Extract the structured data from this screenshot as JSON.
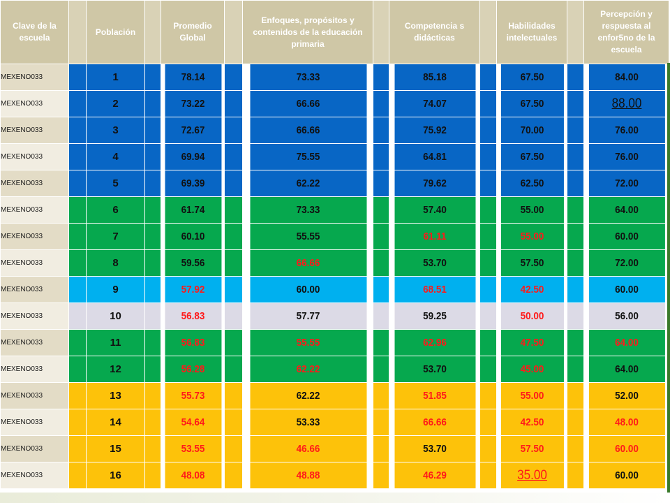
{
  "headers": {
    "clave": "Clave de la escuela",
    "poblacion": "Población",
    "promedio": "Promedio Global",
    "enfoques": "Enfoques, propósitos y contenidos de la educación primaria",
    "competencias": "Competencia s didácticas",
    "habilidades": "Habilidades intelectuales",
    "percepcion": "Percepción y respuesta al enfor5no de la escuela"
  },
  "colors": {
    "blue": "#0866c5",
    "green": "#06a84e",
    "cyan": "#00b0ef",
    "lilac": "#dcdae6",
    "yellow": "#fdc20a",
    "red_text": "#ff1a1a",
    "header": "#cfc7a6"
  },
  "rows": [
    {
      "clave": "MEXENO033",
      "poblacion": "1",
      "promedio": "78.14",
      "enfoques": "73.33",
      "competencias": "85.18",
      "habilidades": "67.50",
      "percepcion": "84.00",
      "color": "blue"
    },
    {
      "clave": "MEXENO033",
      "poblacion": "2",
      "promedio": "73.22",
      "enfoques": "66.66",
      "competencias": "74.07",
      "habilidades": "67.50",
      "percepcion": "88.00",
      "color": "blue"
    },
    {
      "clave": "MEXENO033",
      "poblacion": "3",
      "promedio": "72.67",
      "enfoques": "66.66",
      "competencias": "75.92",
      "habilidades": "70.00",
      "percepcion": "76.00",
      "color": "blue"
    },
    {
      "clave": "MEXENO033",
      "poblacion": "4",
      "promedio": "69.94",
      "enfoques": "75.55",
      "competencias": "64.81",
      "habilidades": "67.50",
      "percepcion": "76.00",
      "color": "blue"
    },
    {
      "clave": "MEXENO033",
      "poblacion": "5",
      "promedio": "69.39",
      "enfoques": "62.22",
      "competencias": "79.62",
      "habilidades": "62.50",
      "percepcion": "72.00",
      "color": "blue"
    },
    {
      "clave": "MEXENO033",
      "poblacion": "6",
      "promedio": "61.74",
      "enfoques": "73.33",
      "competencias": "57.40",
      "habilidades": "55.00",
      "percepcion": "64.00",
      "color": "green"
    },
    {
      "clave": "MEXENO033",
      "poblacion": "7",
      "promedio": "60.10",
      "enfoques": "55.55",
      "competencias": "61.11",
      "habilidades": "55.00",
      "percepcion": "60.00",
      "color": "green"
    },
    {
      "clave": "MEXENO033",
      "poblacion": "8",
      "promedio": "59.56",
      "enfoques": "66.66",
      "competencias": "53.70",
      "habilidades": "57.50",
      "percepcion": "72.00",
      "color": "green"
    },
    {
      "clave": "MEXENO033",
      "poblacion": "9",
      "promedio": "57.92",
      "enfoques": "60.00",
      "competencias": "68.51",
      "habilidades": "42.50",
      "percepcion": "60.00",
      "color": "cyan"
    },
    {
      "clave": "MEXENO033",
      "poblacion": "10",
      "promedio": "56.83",
      "enfoques": "57.77",
      "competencias": "59.25",
      "habilidades": "50.00",
      "percepcion": "56.00",
      "color": "lilac"
    },
    {
      "clave": "MEXENO033",
      "poblacion": "11",
      "promedio": "56.83",
      "enfoques": "55.55",
      "competencias": "62.96",
      "habilidades": "47.50",
      "percepcion": "64.00",
      "color": "green"
    },
    {
      "clave": "MEXENO033",
      "poblacion": "12",
      "promedio": "56.28",
      "enfoques": "62.22",
      "competencias": "53.70",
      "habilidades": "45.00",
      "percepcion": "64.00",
      "color": "green"
    },
    {
      "clave": "MEXENO033",
      "poblacion": "13",
      "promedio": "55.73",
      "enfoques": "62.22",
      "competencias": "51.85",
      "habilidades": "55.00",
      "percepcion": "52.00",
      "color": "yellow"
    },
    {
      "clave": "MEXENO033",
      "poblacion": "14",
      "promedio": "54.64",
      "enfoques": "53.33",
      "competencias": "66.66",
      "habilidades": "42.50",
      "percepcion": "48.00",
      "color": "yellow"
    },
    {
      "clave": "MEXENO033",
      "poblacion": "15",
      "promedio": "53.55",
      "enfoques": "46.66",
      "competencias": "53.70",
      "habilidades": "57.50",
      "percepcion": "60.00",
      "color": "yellow"
    },
    {
      "clave": "MEXENO033",
      "poblacion": "16",
      "promedio": "48.08",
      "enfoques": "48.88",
      "competencias": "46.29",
      "habilidades": "35.00",
      "percepcion": "60.00",
      "color": "yellow"
    }
  ]
}
